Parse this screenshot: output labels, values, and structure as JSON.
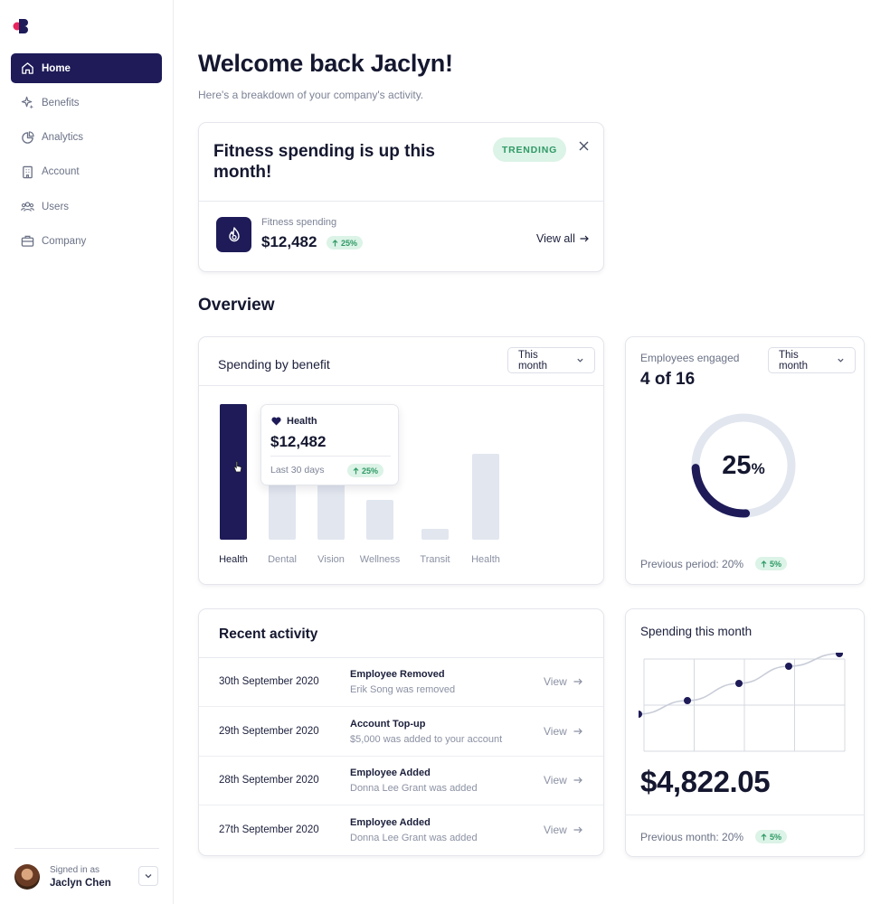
{
  "sidebar": {
    "items": [
      {
        "label": "Home",
        "icon": "home-icon",
        "active": true
      },
      {
        "label": "Benefits",
        "icon": "sparkle-icon",
        "active": false
      },
      {
        "label": "Analytics",
        "icon": "pie-chart-icon",
        "active": false
      },
      {
        "label": "Account",
        "icon": "building-icon",
        "active": false
      },
      {
        "label": "Users",
        "icon": "users-icon",
        "active": false
      },
      {
        "label": "Company",
        "icon": "briefcase-icon",
        "active": false
      }
    ],
    "user": {
      "signed_label": "Signed in as",
      "name": "Jaclyn Chen"
    }
  },
  "header": {
    "title": "Welcome back Jaclyn!",
    "subtitle": "Here's a breakdown of your company's activity."
  },
  "trending": {
    "title": "Fitness spending is up this month!",
    "badge": "TRENDING",
    "metric_label": "Fitness spending",
    "metric_value": "$12,482",
    "change": "25%",
    "link": "View all"
  },
  "overview_title": "Overview",
  "spending_by_benefit": {
    "title": "Spending by benefit",
    "period": "This month",
    "tooltip": {
      "category": "Health",
      "amount": "$12,482",
      "period": "Last 30 days",
      "change": "25%"
    }
  },
  "chart_data": [
    {
      "type": "bar",
      "categories": [
        "Health",
        "Dental",
        "Vision",
        "Wellness",
        "Transit",
        "Health"
      ],
      "values": [
        100,
        50,
        50,
        29,
        8,
        63
      ],
      "highlight_index": 0,
      "colors": {
        "active": "#1e1b58",
        "inactive": "#e1e6ef"
      }
    },
    {
      "type": "line",
      "x": [
        1,
        2,
        3,
        4,
        5
      ],
      "values": [
        32,
        47,
        66,
        85,
        99
      ],
      "ylim": [
        0,
        100
      ],
      "grid": true
    }
  ],
  "employees_engaged": {
    "label": "Employees engaged",
    "value": "4 of 16",
    "period": "This month",
    "percent": 25,
    "percent_unit": "%",
    "previous": "Previous period: 20%",
    "change": "5%"
  },
  "recent_activity": {
    "title": "Recent activity",
    "view_label": "View",
    "rows": [
      {
        "date": "30th September 2020",
        "title": "Employee Removed",
        "desc": "Erik Song was removed"
      },
      {
        "date": "29th September 2020",
        "title": "Account Top-up",
        "desc": "$5,000 was added to your account"
      },
      {
        "date": "28th September 2020",
        "title": "Employee Added",
        "desc": "Donna Lee Grant was added"
      },
      {
        "date": "27th September 2020",
        "title": "Employee Added",
        "desc": "Donna Lee Grant was added"
      }
    ]
  },
  "spending_month": {
    "title": "Spending this month",
    "amount": "$4,822.05",
    "previous": "Previous month: 20%",
    "change": "5%"
  },
  "colors": {
    "brand": "#1e1b58",
    "positive_bg": "#dcf3e7",
    "positive_text": "#2f9a65",
    "logo_accent": "#e8245c"
  }
}
